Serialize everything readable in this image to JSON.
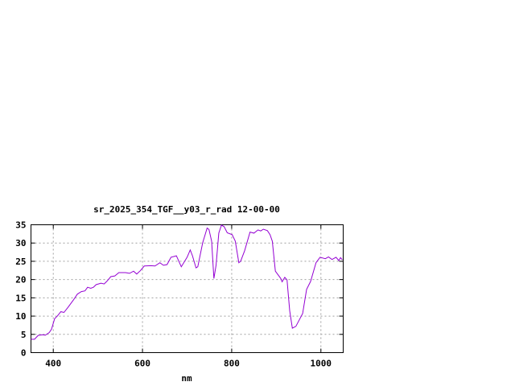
{
  "chart_data": {
    "type": "line",
    "title": "sr_2025_354_TGF__y03_r_rad 12-00-00",
    "xlabel": "nm",
    "ylabel": "",
    "xlim": [
      350,
      1050
    ],
    "ylim": [
      0,
      35
    ],
    "xticks": [
      400,
      600,
      800,
      1000
    ],
    "yticks": [
      0,
      5,
      10,
      15,
      20,
      25,
      30,
      35
    ],
    "grid": true,
    "line_color": "#9400d3",
    "series": [
      {
        "x": [
          350,
          358,
          366,
          376,
          382,
          391,
          396,
          403,
          409,
          417,
          424,
          433,
          445,
          454,
          463,
          471,
          477,
          484,
          490,
          496,
          507,
          514,
          520,
          529,
          538,
          547,
          562,
          571,
          580,
          587,
          595,
          604,
          619,
          628,
          639,
          647,
          655,
          664,
          676,
          687,
          700,
          707,
          712,
          720,
          724,
          735,
          745,
          749,
          755,
          760,
          765,
          771,
          777,
          783,
          790,
          801,
          808,
          816,
          820,
          829,
          841,
          850,
          859,
          865,
          871,
          880,
          886,
          891,
          898,
          910,
          913,
          919,
          924,
          930,
          936,
          944,
          959,
          968,
          977,
          989,
          998,
          1010,
          1017,
          1025,
          1034,
          1040,
          1044,
          1048
        ],
        "y": [
          3.65,
          3.65,
          4.7,
          4.9,
          4.75,
          5.5,
          6.4,
          9.3,
          10.0,
          11.2,
          11.0,
          12.4,
          14.4,
          16.0,
          16.7,
          16.9,
          17.9,
          17.6,
          17.9,
          18.6,
          19.0,
          18.8,
          19.5,
          20.8,
          21.0,
          21.9,
          21.9,
          21.7,
          22.3,
          21.5,
          22.4,
          23.7,
          23.8,
          23.7,
          24.6,
          23.9,
          24.1,
          26.1,
          26.5,
          23.5,
          26.1,
          28.1,
          26.5,
          23.2,
          23.5,
          30.1,
          34.1,
          33.7,
          30.5,
          20.3,
          23.9,
          32.7,
          34.9,
          34.5,
          32.8,
          32.3,
          30.5,
          24.6,
          25.0,
          27.9,
          33.0,
          32.7,
          33.6,
          33.3,
          33.8,
          33.4,
          32.3,
          30.5,
          22.3,
          20.3,
          19.4,
          20.6,
          19.9,
          11.5,
          6.7,
          7.2,
          10.7,
          17.3,
          19.5,
          24.6,
          26.1,
          25.7,
          26.2,
          25.5,
          26.1,
          25.2,
          26.0,
          25.4
        ]
      }
    ]
  }
}
